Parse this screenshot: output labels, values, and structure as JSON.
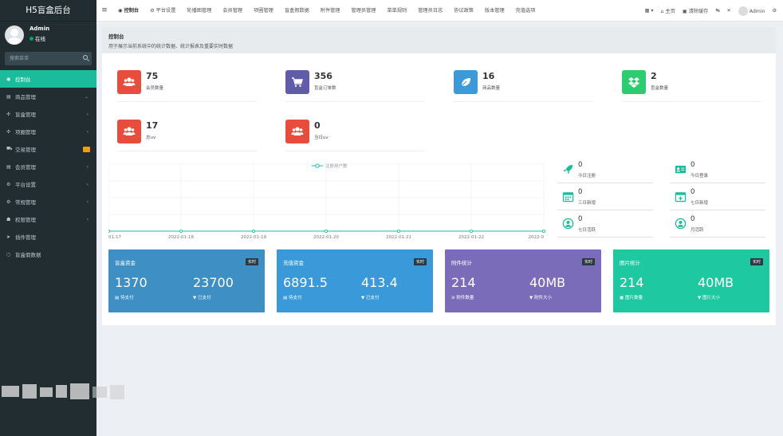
{
  "sidebar": {
    "brand": "H5盲盒后台",
    "user": {
      "name": "Admin",
      "status": "在线"
    },
    "search_placeholder": "搜索菜单",
    "items": [
      {
        "label": "控制台",
        "icon": "dashboard-icon",
        "active": true
      },
      {
        "label": "商品管理",
        "icon": "list-icon",
        "arrow": "chevron-down"
      },
      {
        "label": "盲盒管理",
        "icon": "box-icon",
        "arrow": "chevron-left"
      },
      {
        "label": "项圈管理",
        "icon": "gear-icon",
        "arrow": "chevron-left"
      },
      {
        "label": "交易管理",
        "icon": "cart-icon",
        "badge": true
      },
      {
        "label": "会员管理",
        "icon": "users-icon",
        "arrow": "chevron-left"
      },
      {
        "label": "平台设置",
        "icon": "cog-icon",
        "arrow": "chevron-left"
      },
      {
        "label": "常规管理",
        "icon": "cog-icon",
        "arrow": "chevron-left"
      },
      {
        "label": "权限管理",
        "icon": "group-icon",
        "arrow": "chevron-left"
      },
      {
        "label": "插件管理",
        "icon": "rocket-icon"
      },
      {
        "label": "盲盒假数据",
        "icon": "circle-icon"
      }
    ]
  },
  "topbar": {
    "tabs": [
      "控制台",
      "平台设置",
      "轮播图管理",
      "会员管理",
      "项圈管理",
      "盲盒假数据",
      "附件管理",
      "管理员管理",
      "菜单规则",
      "管理员日志",
      "协议政策",
      "版本管理",
      "充值选项"
    ],
    "right": {
      "home": "主页",
      "clear_cache": "清除缓存",
      "admin": "Admin"
    }
  },
  "header": {
    "title": "控制台",
    "subtitle": "用于展示当前系统中的统计数据、统计报表及重要实时数据"
  },
  "stats": [
    {
      "value": "75",
      "label": "会员数量",
      "color": "#e74c3c",
      "icon": "users-icon"
    },
    {
      "value": "356",
      "label": "盲盒订单数",
      "color": "#605ca8",
      "icon": "cart-icon"
    },
    {
      "value": "16",
      "label": "商品数量",
      "color": "#3c9ad8",
      "icon": "leaf-icon"
    },
    {
      "value": "2",
      "label": "盲盒数量",
      "color": "#2ecc71",
      "icon": "dropbox-icon"
    },
    {
      "value": "17",
      "label": "总uv",
      "color": "#e74c3c",
      "icon": "users-icon"
    },
    {
      "value": "0",
      "label": "当日uv",
      "color": "#e74c3c",
      "icon": "users-icon"
    }
  ],
  "chart_data": {
    "type": "line",
    "title": "",
    "x": [
      "01-17",
      "2022-01-18",
      "2022-01-19",
      "2022-01-20",
      "2022-01-21",
      "2022-01-22",
      "2022-0"
    ],
    "series": [
      {
        "name": "注册用户数",
        "values": [
          0,
          0,
          0,
          0,
          0,
          0,
          0
        ]
      }
    ],
    "xlabel": "",
    "ylabel": "",
    "grid": true,
    "legend": "top-center",
    "color": "#1abc9c"
  },
  "mini_stats": [
    {
      "value": "0",
      "label": "今日注册",
      "icon": "rocket-icon"
    },
    {
      "value": "0",
      "label": "今日登录",
      "icon": "vcard-icon"
    },
    {
      "value": "0",
      "label": "三日新增",
      "icon": "calendar-icon"
    },
    {
      "value": "0",
      "label": "七日新增",
      "icon": "calendar-plus-icon"
    },
    {
      "value": "0",
      "label": "七日活跃",
      "icon": "user-circle-icon"
    },
    {
      "value": "0",
      "label": "月活跃",
      "icon": "user-circle-icon"
    }
  ],
  "cards": [
    {
      "title": "盲盒资金",
      "tag": "实时",
      "v1": "1370",
      "l1": "待支付",
      "v2": "23700",
      "l2": "已支付",
      "color": "#3c8dbc"
    },
    {
      "title": "充值资金",
      "tag": "实时",
      "v1": "6891.5",
      "l1": "待支付",
      "v2": "413.4",
      "l2": "已支付",
      "color": "#3a9ad9"
    },
    {
      "title": "附件统计",
      "tag": "实时",
      "v1": "214",
      "l1": "附件数量",
      "v2": "40MB",
      "l2": "附件大小",
      "color": "#7f6fbf"
    },
    {
      "title": "图片统计",
      "tag": "实时",
      "v1": "214",
      "l1": "图片数量",
      "v2": "40MB",
      "l2": "图片大小",
      "color": "#1fc8a1"
    }
  ]
}
